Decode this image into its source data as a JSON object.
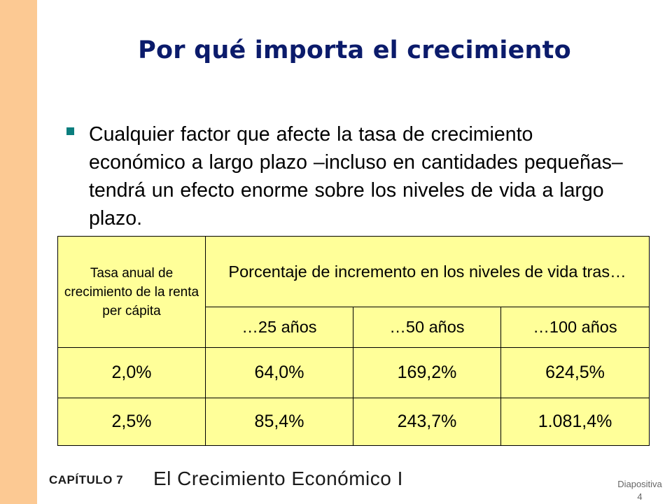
{
  "title": "Por qué importa el crecimiento",
  "bullet": "Cualquier factor que afecte la tasa de crecimiento económico a largo plazo –incluso en cantidades pequeñas– tendrá un efecto enorme sobre los niveles de vida a largo plazo.",
  "table": {
    "row_label": "Tasa anual de crecimiento de la renta per cápita",
    "header": "Porcentaje de incremento en los niveles de vida tras…",
    "years": [
      "…25 años",
      "…50 años",
      "…100 años"
    ],
    "rows": [
      {
        "rate": "2,0%",
        "values": [
          "64,0%",
          "169,2%",
          "624,5%"
        ]
      },
      {
        "rate": "2,5%",
        "values": [
          "85,4%",
          "243,7%",
          "1.081,4%"
        ]
      }
    ]
  },
  "footer": {
    "chapter": "CAPÍTULO 7",
    "chapter_title": "El Crecimiento Económico I",
    "slide_label": "Diapositiva",
    "slide_number": "4"
  },
  "colors": {
    "sidebar": "#fcc993",
    "title": "#0b1b6b",
    "bullet": "#0a7e7e",
    "table_bg": "#ffff99",
    "values": "#cc0000"
  }
}
